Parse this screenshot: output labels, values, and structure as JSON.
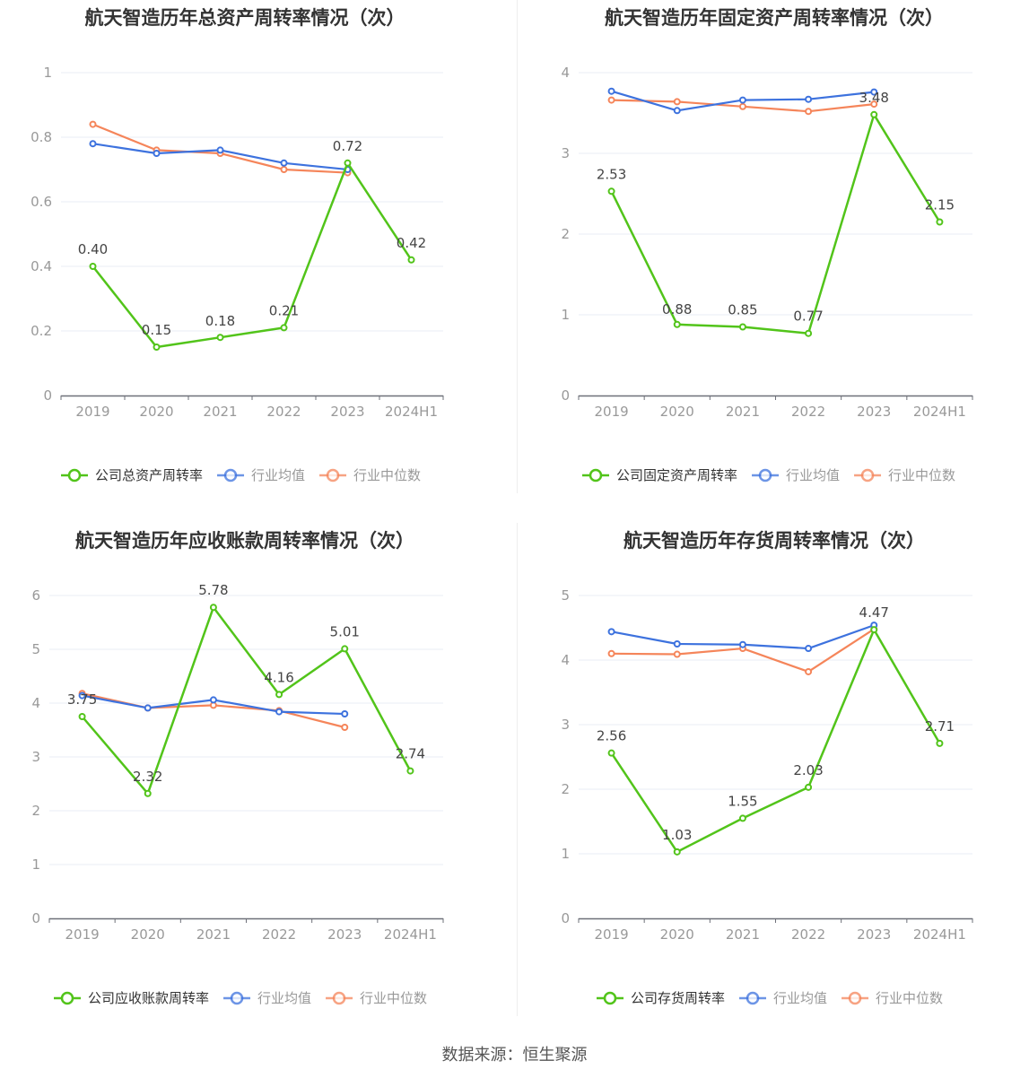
{
  "colors": {
    "company": "#52c41a",
    "avg": "#3d72de",
    "median": "#f5855a",
    "axis": "#999999",
    "grid": "#e8edf5"
  },
  "categories": [
    "2019",
    "2020",
    "2021",
    "2022",
    "2023",
    "2024H1"
  ],
  "source": "数据来源：恒生聚源",
  "chart_data": [
    {
      "type": "line",
      "title": "航天智造历年总资产周转率情况（次）",
      "categories": [
        "2019",
        "2020",
        "2021",
        "2022",
        "2023",
        "2024H1"
      ],
      "ylim": [
        0,
        1
      ],
      "yticks": [
        0,
        0.2,
        0.4,
        0.6,
        0.8,
        1
      ],
      "ytick_labels": [
        "0",
        "0.2",
        "0.4",
        "0.6",
        "0.8",
        "1"
      ],
      "series": [
        {
          "name": "公司总资产周转率",
          "key": "company",
          "values": [
            0.4,
            0.15,
            0.18,
            0.21,
            0.72,
            0.42
          ],
          "labels": [
            "0.40",
            "0.15",
            "0.18",
            "0.21",
            "0.72",
            "0.42"
          ]
        },
        {
          "name": "行业均值",
          "key": "avg",
          "values": [
            0.78,
            0.75,
            0.76,
            0.72,
            0.7,
            null
          ]
        },
        {
          "name": "行业中位数",
          "key": "median",
          "values": [
            0.84,
            0.76,
            0.75,
            0.7,
            0.69,
            null
          ]
        }
      ]
    },
    {
      "type": "line",
      "title": "航天智造历年固定资产周转率情况（次）",
      "categories": [
        "2019",
        "2020",
        "2021",
        "2022",
        "2023",
        "2024H1"
      ],
      "ylim": [
        0,
        4
      ],
      "yticks": [
        0,
        1,
        2,
        3,
        4
      ],
      "ytick_labels": [
        "0",
        "1",
        "2",
        "3",
        "4"
      ],
      "series": [
        {
          "name": "公司固定资产周转率",
          "key": "company",
          "values": [
            2.53,
            0.88,
            0.85,
            0.77,
            3.48,
            2.15
          ],
          "labels": [
            "2.53",
            "0.88",
            "0.85",
            "0.77",
            "3.48",
            "2.15"
          ]
        },
        {
          "name": "行业均值",
          "key": "avg",
          "values": [
            3.77,
            3.53,
            3.66,
            3.67,
            3.76,
            null
          ]
        },
        {
          "name": "行业中位数",
          "key": "median",
          "values": [
            3.66,
            3.64,
            3.58,
            3.52,
            3.61,
            null
          ]
        }
      ]
    },
    {
      "type": "line",
      "title": "航天智造历年应收账款周转率情况（次）",
      "categories": [
        "2019",
        "2020",
        "2021",
        "2022",
        "2023",
        "2024H1"
      ],
      "ylim": [
        0,
        6
      ],
      "yticks": [
        0,
        1,
        2,
        3,
        4,
        5,
        6
      ],
      "ytick_labels": [
        "0",
        "1",
        "2",
        "3",
        "4",
        "5",
        "6"
      ],
      "series": [
        {
          "name": "公司应收账款周转率",
          "key": "company",
          "values": [
            3.75,
            2.32,
            5.78,
            4.16,
            5.01,
            2.74
          ],
          "labels": [
            "3.75",
            "2.32",
            "5.78",
            "4.16",
            "5.01",
            "2.74"
          ]
        },
        {
          "name": "行业均值",
          "key": "avg",
          "values": [
            4.14,
            3.91,
            4.06,
            3.84,
            3.8,
            null
          ]
        },
        {
          "name": "行业中位数",
          "key": "median",
          "values": [
            4.18,
            3.91,
            3.96,
            3.86,
            3.55,
            null
          ]
        }
      ]
    },
    {
      "type": "line",
      "title": "航天智造历年存货周转率情况（次）",
      "categories": [
        "2019",
        "2020",
        "2021",
        "2022",
        "2023",
        "2024H1"
      ],
      "ylim": [
        0,
        5
      ],
      "yticks": [
        0,
        1,
        2,
        3,
        4,
        5
      ],
      "ytick_labels": [
        "0",
        "1",
        "2",
        "3",
        "4",
        "5"
      ],
      "series": [
        {
          "name": "公司存货周转率",
          "key": "company",
          "values": [
            2.56,
            1.03,
            1.55,
            2.03,
            4.47,
            2.71
          ],
          "labels": [
            "2.56",
            "1.03",
            "1.55",
            "2.03",
            "4.47",
            "2.71"
          ]
        },
        {
          "name": "行业均值",
          "key": "avg",
          "values": [
            4.44,
            4.25,
            4.24,
            4.18,
            4.54,
            null
          ]
        },
        {
          "name": "行业中位数",
          "key": "median",
          "values": [
            4.1,
            4.09,
            4.18,
            3.82,
            4.48,
            null
          ]
        }
      ]
    }
  ]
}
